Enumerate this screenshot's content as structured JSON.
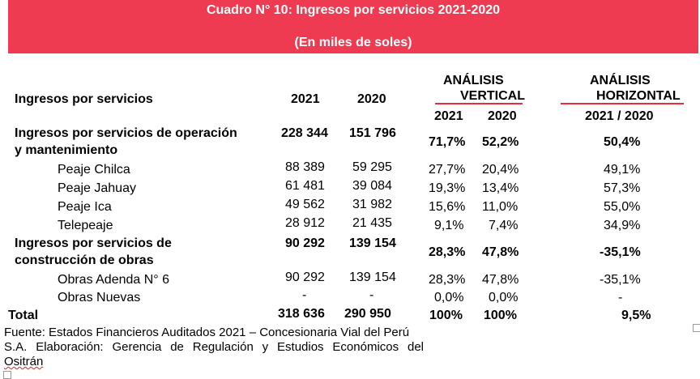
{
  "title": "Cuadro N° 10: Ingresos por servicios 2021-2020",
  "subtitle": "(En miles de soles)",
  "header": {
    "label": "Ingresos por servicios",
    "y2021": "2021",
    "y2020": "2020",
    "vertical_line1": "ANÁLISIS",
    "vertical_line2": "VERTICAL",
    "vertical_y2021": "2021",
    "vertical_y2020": "2020",
    "horizontal_line1": "ANÁLISIS",
    "horizontal_line2": "HORIZONTAL",
    "horizontal_range": "2021 / 2020"
  },
  "rows": [
    {
      "label1": "Ingresos por  servicios de operación",
      "label2": "y mantenimiento",
      "v2021": "228 344",
      "v2020": "151 796",
      "av2021": "71,7%",
      "av2020": "52,2%",
      "ah": "50,4%"
    },
    {
      "label1": "Peaje Chilca",
      "v2021": "88 389",
      "v2020": "59 295",
      "av2021": "27,7%",
      "av2020": "20,4%",
      "ah": "49,1%"
    },
    {
      "label1": "Peaje Jahuay",
      "v2021": "61 481",
      "v2020": "39 084",
      "av2021": "19,3%",
      "av2020": "13,4%",
      "ah": "57,3%"
    },
    {
      "label1": "Peaje Ica",
      "v2021": "49 562",
      "v2020": "31 982",
      "av2021": "15,6%",
      "av2020": "11,0%",
      "ah": "55,0%"
    },
    {
      "label1": "Telepeaje",
      "v2021": "28 912",
      "v2020": "21 435",
      "av2021": "9,1%",
      "av2020": "7,4%",
      "ah": "34,9%"
    },
    {
      "label1": "Ingresos por servicios de",
      "label2": "construcción de obras",
      "v2021": "90 292",
      "v2020": "139 154",
      "av2021": "28,3%",
      "av2020": "47,8%",
      "ah": "-35,1%"
    },
    {
      "label1": "Obras Adenda N° 6",
      "v2021": "90 292",
      "v2020": "139 154",
      "av2021": "28,3%",
      "av2020": "47,8%",
      "ah": "-35,1%"
    },
    {
      "label1": "Obras Nuevas",
      "v2021": "-",
      "v2020": "-",
      "av2021": "0,0%",
      "av2020": "0,0%",
      "ah": "-"
    },
    {
      "label1": "Total",
      "v2021": "318 636",
      "v2020": "290 950",
      "av2021": "100%",
      "av2020": "100%",
      "ah": "9,5%"
    }
  ],
  "source": {
    "line1": "Fuente: Estados Financieros Auditados 2021 – Concesionaria Vial del Perú",
    "line2": "S.A. Elaboración: Gerencia de Regulación y Estudios Económicos del",
    "line3": "Ositrán"
  },
  "colors": {
    "banner": "#ee3b52",
    "accent_line": "#e62b3a"
  }
}
